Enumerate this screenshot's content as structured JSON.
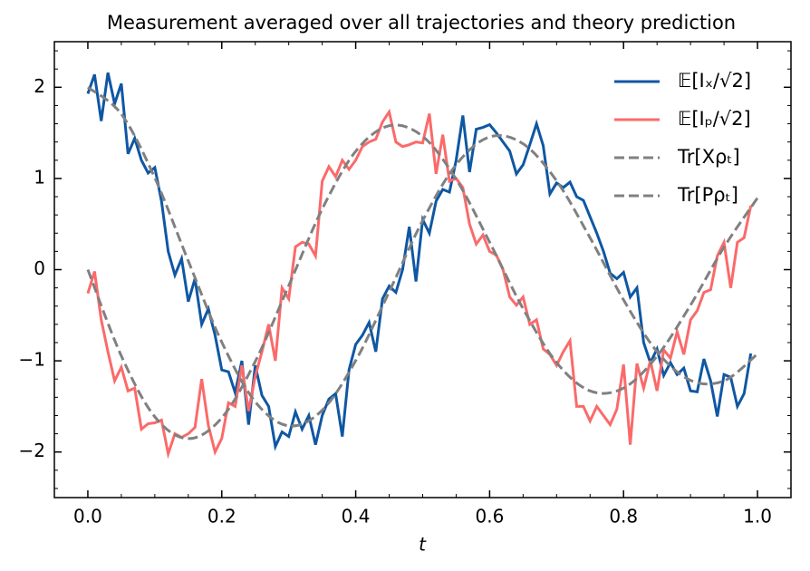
{
  "chart_data": {
    "type": "line",
    "title": "Measurement averaged over all trajectories and theory prediction",
    "xlabel": "t",
    "xlim": [
      -0.05,
      1.05
    ],
    "ylim": [
      -2.5,
      2.5
    ],
    "xticks": [
      {
        "value": 0,
        "label": "0.0"
      },
      0.2,
      0.4,
      0.6,
      0.8,
      {
        "value": 1,
        "label": "1.0"
      }
    ],
    "yticks": [
      {
        "value": -2,
        "label": "−2"
      },
      {
        "value": -1,
        "label": "−1"
      },
      0,
      1,
      2
    ],
    "xminorticks": [
      -0.05,
      0.05,
      0.1,
      0.15,
      0.25,
      0.3,
      0.35,
      0.45,
      0.5,
      0.55,
      0.65,
      0.7,
      0.75,
      0.85,
      0.9,
      0.95,
      1.05
    ],
    "yminorticks": [
      -2.4,
      -2.2,
      -1.8,
      -1.6,
      -1.4,
      -1.2,
      -0.8,
      -0.6,
      -0.4,
      -0.2,
      0.2,
      0.4,
      0.6,
      0.8,
      1.2,
      1.4,
      1.6,
      1.8,
      2.2,
      2.4
    ],
    "legend": "upper right",
    "series": [
      {
        "name": "𝔼[Iₓ/√2]",
        "color": "#0f57a3",
        "style": "solid",
        "smooth": false,
        "x": [
          0,
          0.01,
          0.02,
          0.03,
          0.04,
          0.05,
          0.06,
          0.07,
          0.08,
          0.09,
          0.1,
          0.11,
          0.12,
          0.13,
          0.14,
          0.15,
          0.16,
          0.17,
          0.18,
          0.19,
          0.2,
          0.21,
          0.22,
          0.23,
          0.24,
          0.25,
          0.26,
          0.27,
          0.28,
          0.29,
          0.3,
          0.31,
          0.32,
          0.33,
          0.34,
          0.35,
          0.36,
          0.37,
          0.38,
          0.39,
          0.4,
          0.41,
          0.42,
          0.43,
          0.44,
          0.45,
          0.46,
          0.47,
          0.48,
          0.49,
          0.5,
          0.51,
          0.52,
          0.53,
          0.54,
          0.55,
          0.56,
          0.57,
          0.58,
          0.59,
          0.6,
          0.61,
          0.62,
          0.63,
          0.64,
          0.65,
          0.66,
          0.67,
          0.68,
          0.69,
          0.7,
          0.71,
          0.72,
          0.73,
          0.74,
          0.75,
          0.76,
          0.77,
          0.78,
          0.79,
          0.8,
          0.81,
          0.82,
          0.83,
          0.84,
          0.85,
          0.86,
          0.87,
          0.88,
          0.89,
          0.9,
          0.91,
          0.92,
          0.93,
          0.94,
          0.95,
          0.96,
          0.97,
          0.98,
          0.99
        ],
        "values": [
          1.93,
          2.14,
          1.63,
          2.16,
          1.82,
          2.04,
          1.27,
          1.44,
          1.2,
          1.06,
          1.12,
          0.75,
          0.2,
          -0.06,
          0.12,
          -0.35,
          -0.1,
          -0.6,
          -0.43,
          -0.72,
          -1.1,
          -1.12,
          -1.35,
          -1.0,
          -1.7,
          -1.05,
          -1.38,
          -1.5,
          -1.94,
          -1.78,
          -1.83,
          -1.56,
          -1.75,
          -1.6,
          -1.92,
          -1.6,
          -1.42,
          -1.36,
          -1.83,
          -1.1,
          -0.82,
          -0.72,
          -0.58,
          -0.9,
          -0.32,
          -0.18,
          -0.25,
          0.0,
          0.47,
          -0.13,
          0.55,
          0.4,
          0.75,
          0.88,
          0.85,
          1.2,
          1.69,
          1.07,
          1.54,
          1.56,
          1.59,
          1.5,
          1.4,
          1.3,
          1.05,
          1.15,
          1.37,
          1.6,
          1.36,
          0.83,
          0.95,
          0.9,
          0.96,
          0.8,
          0.76,
          0.58,
          0.4,
          0.2,
          -0.04,
          -0.1,
          -0.03,
          -0.3,
          -0.2,
          -0.8,
          -1.02,
          -0.87,
          -1.16,
          -1.02,
          -1.15,
          -1.08,
          -1.33,
          -1.34,
          -0.98,
          -1.22,
          -1.61,
          -1.15,
          -1.18,
          -1.5,
          -1.36,
          -0.92
        ]
      },
      {
        "name": "𝔼[Iₚ/√2]",
        "color": "#fb6a6a",
        "style": "solid",
        "smooth": false,
        "x": [
          0,
          0.01,
          0.02,
          0.03,
          0.04,
          0.05,
          0.06,
          0.07,
          0.08,
          0.09,
          0.1,
          0.11,
          0.12,
          0.13,
          0.14,
          0.15,
          0.16,
          0.17,
          0.18,
          0.19,
          0.2,
          0.21,
          0.22,
          0.23,
          0.24,
          0.25,
          0.26,
          0.27,
          0.28,
          0.29,
          0.3,
          0.31,
          0.32,
          0.33,
          0.34,
          0.35,
          0.36,
          0.37,
          0.38,
          0.39,
          0.4,
          0.41,
          0.42,
          0.43,
          0.44,
          0.45,
          0.46,
          0.47,
          0.48,
          0.49,
          0.5,
          0.51,
          0.52,
          0.53,
          0.54,
          0.55,
          0.56,
          0.57,
          0.58,
          0.59,
          0.6,
          0.61,
          0.62,
          0.63,
          0.64,
          0.65,
          0.66,
          0.67,
          0.68,
          0.69,
          0.7,
          0.71,
          0.72,
          0.73,
          0.74,
          0.75,
          0.76,
          0.77,
          0.78,
          0.79,
          0.8,
          0.81,
          0.82,
          0.83,
          0.84,
          0.85,
          0.86,
          0.87,
          0.88,
          0.89,
          0.9,
          0.91,
          0.92,
          0.93,
          0.94,
          0.95,
          0.96,
          0.97,
          0.98,
          0.99
        ],
        "values": [
          -0.26,
          -0.02,
          -0.55,
          -0.9,
          -1.22,
          -1.07,
          -1.33,
          -1.3,
          -1.75,
          -1.69,
          -1.68,
          -1.65,
          -2.02,
          -1.8,
          -1.84,
          -1.8,
          -1.73,
          -1.2,
          -1.71,
          -2.0,
          -1.85,
          -1.46,
          -1.5,
          -1.05,
          -1.55,
          -1.17,
          -0.9,
          -0.6,
          -1.0,
          -0.2,
          -0.32,
          0.25,
          0.3,
          0.28,
          0.15,
          0.97,
          1.13,
          1.02,
          1.2,
          1.1,
          1.2,
          1.35,
          1.4,
          1.43,
          1.62,
          1.73,
          1.4,
          1.35,
          1.37,
          1.4,
          1.39,
          1.71,
          1.05,
          1.48,
          0.97,
          1.0,
          0.9,
          0.5,
          0.28,
          0.38,
          0.2,
          0.16,
          0.0,
          -0.3,
          -0.39,
          -0.3,
          -0.6,
          -0.55,
          -0.87,
          -0.93,
          -1.05,
          -0.9,
          -0.78,
          -1.5,
          -1.5,
          -1.66,
          -1.5,
          -1.6,
          -1.7,
          -1.53,
          -1.04,
          -1.92,
          -1.03,
          -1.3,
          -1.0,
          -1.33,
          -0.88,
          -0.97,
          -0.68,
          -0.93,
          -0.55,
          -0.45,
          -0.25,
          -0.22,
          0.15,
          0.3,
          -0.2,
          0.3,
          0.35,
          0.7
        ]
      },
      {
        "name": "Tr[Xρₜ]",
        "color": "#808080",
        "style": "dashed",
        "smooth": true,
        "x": [
          0,
          0.05,
          0.1,
          0.15,
          0.2,
          0.25,
          0.3,
          0.35,
          0.4,
          0.45,
          0.5,
          0.55,
          0.6,
          0.65,
          0.7,
          0.75,
          0.8,
          0.85,
          0.9,
          0.95,
          1.0
        ],
        "values": [
          2.0,
          1.706,
          1.007,
          0.095,
          -0.795,
          -1.449,
          -1.713,
          -1.542,
          -0.998,
          -0.243,
          0.538,
          1.151,
          1.456,
          1.38,
          0.974,
          0.349,
          -0.332,
          -0.899,
          -1.214,
          -1.22,
          -0.924
        ]
      },
      {
        "name": "Tr[Pρₜ]",
        "color": "#808080",
        "style": "dashed",
        "smooth": true,
        "x": [
          0,
          0.05,
          0.1,
          0.15,
          0.2,
          0.25,
          0.3,
          0.35,
          0.4,
          0.45,
          0.5,
          0.55,
          0.6,
          0.65,
          0.7,
          0.75,
          0.8,
          0.85,
          0.9,
          0.95,
          1.0
        ],
        "values": [
          0.0,
          -0.946,
          -1.614,
          -1.853,
          -1.626,
          -1.007,
          -0.176,
          0.665,
          1.298,
          1.578,
          1.462,
          0.991,
          0.301,
          -0.429,
          -1.019,
          -1.33,
          -1.299,
          -0.949,
          -0.389,
          0.246,
          0.786
        ]
      }
    ]
  }
}
